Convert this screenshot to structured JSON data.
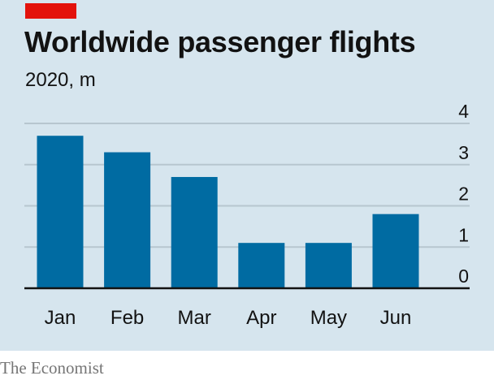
{
  "title": "Worldwide passenger flights",
  "subtitle": "2020, m",
  "source": "The Economist",
  "colors": {
    "background": "#d6e5ee",
    "bar": "#006ba2",
    "gridline": "#b7c6cf",
    "axis": "#121212",
    "accent": "#e3120b"
  },
  "chart_data": {
    "type": "bar",
    "title": "Worldwide passenger flights",
    "subtitle": "2020, m",
    "xlabel": "",
    "ylabel": "",
    "categories": [
      "Jan",
      "Feb",
      "Mar",
      "Apr",
      "May",
      "Jun"
    ],
    "values": [
      3.7,
      3.3,
      2.7,
      1.1,
      1.1,
      1.8
    ],
    "ylim": [
      0,
      4
    ],
    "yticks": [
      0,
      1,
      2,
      3,
      4
    ],
    "ytick_labels": [
      "0",
      "1",
      "2",
      "3",
      "4"
    ],
    "y_axis_position": "right",
    "grid": true
  }
}
